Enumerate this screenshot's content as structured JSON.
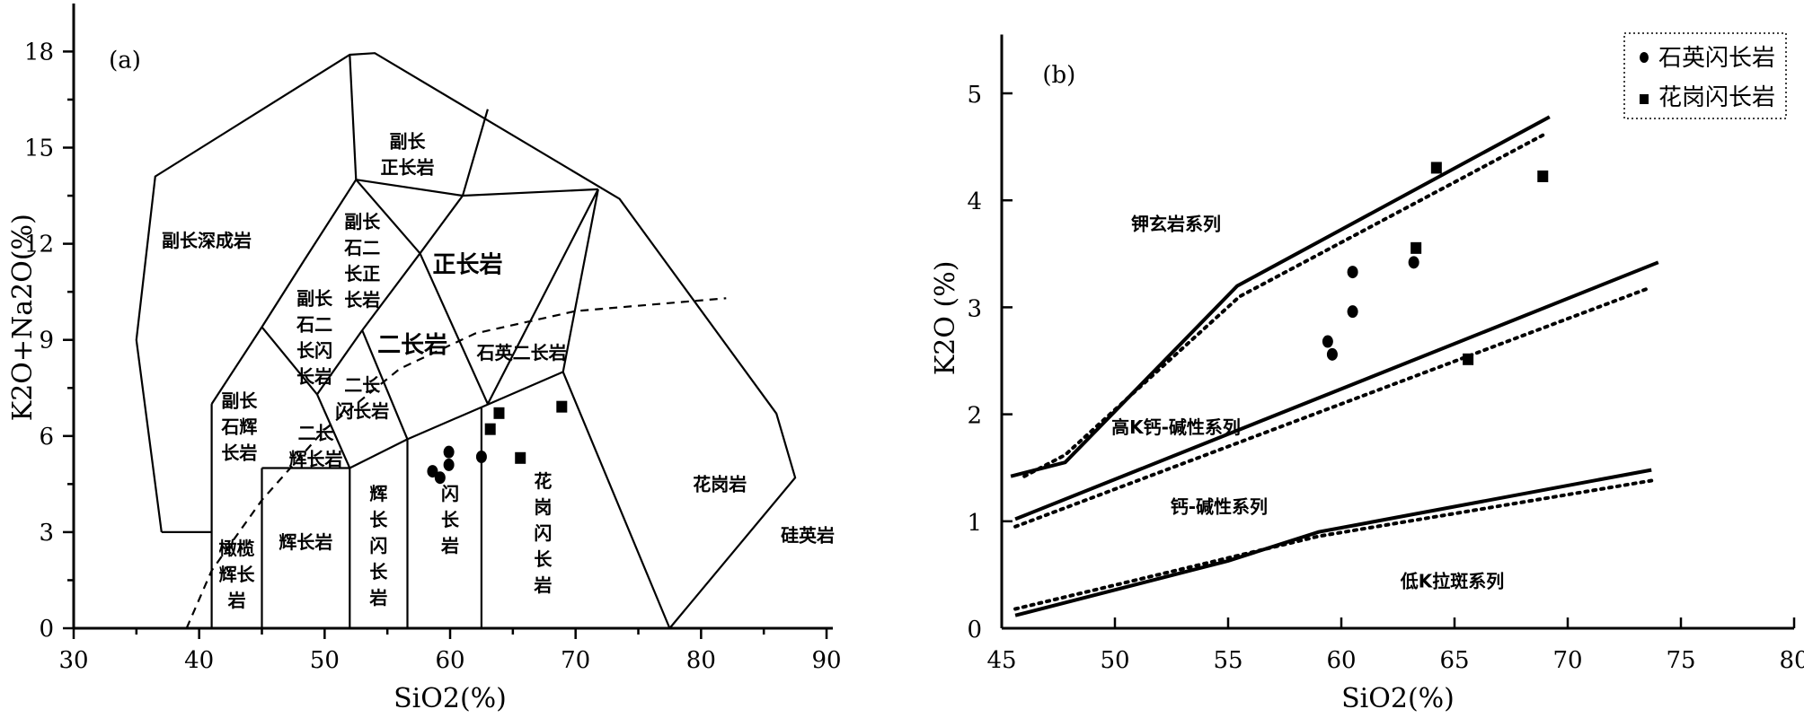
{
  "chart_data": [
    {
      "type": "scatter",
      "panel_label": "(a)",
      "xlabel": "SiO2(%)",
      "ylabel": "K2O+Na2O(%)",
      "xlim": [
        30,
        90
      ],
      "ylim": [
        0,
        19.5
      ],
      "xticks": [
        30,
        40,
        50,
        60,
        70,
        80,
        90
      ],
      "yticks": [
        0,
        3,
        6,
        9,
        12,
        15,
        18
      ],
      "field_labels": {
        "fu_chang_shen_cheng_yan": "副长深成岩",
        "fu_chang_zheng_chang_yan": "副长\n正长岩",
        "fu_chang_shi_er_chang_zheng_chang_yan": "副长\n石二\n长正\n长岩",
        "zheng_chang_yan": "正长岩",
        "fu_chang_shi_er_chang_shan_chang_yan": "副长\n石二\n长闪\n长岩",
        "er_chang_yan": "二长岩",
        "shi_ying_er_chang_yan": "石英二长岩",
        "fu_chang_shi_hui_chang_yan": "副长\n石辉\n长岩",
        "er_chang_hui_chang_yan": "二长\n辉长岩",
        "er_chang_shan_chang_yan": "二长\n闪长岩",
        "gan_lan_hui_chang_yan": "橄榄\n辉长\n岩",
        "hui_chang_yan": "辉长岩",
        "hui_chang_shan_chang_yan": "辉\n长\n闪\n长\n岩",
        "shan_chang_yan": "闪\n长\n岩",
        "hua_gang_shan_chang_yan": "花\n岗\n闪\n长\n岩",
        "hua_gang_yan": "花岗岩",
        "gui_ying_yan": "硅英岩"
      },
      "series": [
        {
          "name": "石英闪长岩",
          "marker": "circle",
          "points": [
            [
              58.6,
              4.9
            ],
            [
              59.2,
              4.7
            ],
            [
              59.9,
              5.1
            ],
            [
              59.9,
              5.5
            ],
            [
              62.5,
              5.35
            ]
          ]
        },
        {
          "name": "花岗闪长岩",
          "marker": "square",
          "points": [
            [
              63.2,
              6.2
            ],
            [
              63.9,
              6.7
            ],
            [
              65.6,
              5.3
            ],
            [
              68.9,
              6.9
            ]
          ]
        }
      ]
    },
    {
      "type": "line",
      "panel_label": "(b)",
      "xlabel": "SiO2(%)",
      "ylabel": "K2O (%)",
      "xlim": [
        45,
        80
      ],
      "ylim": [
        0,
        5.55
      ],
      "xticks": [
        45,
        50,
        55,
        60,
        65,
        70,
        75,
        80
      ],
      "yticks": [
        0,
        1,
        2,
        3,
        4,
        5
      ],
      "series_fields": {
        "shoshonite": "钾玄岩系列",
        "high_k_calc_alkaline": "高K钙-碱性系列",
        "calc_alkaline": "钙-碱性系列",
        "low_k_tholeiite": "低K拉斑系列"
      },
      "legend": {
        "position": "top-right",
        "entries": [
          "石英闪长岩",
          "花岗闪长岩"
        ]
      },
      "series": [
        {
          "name": "石英闪长岩",
          "marker": "circle",
          "points": [
            [
              59.4,
              2.68
            ],
            [
              59.6,
              2.56
            ],
            [
              60.5,
              2.96
            ],
            [
              60.5,
              3.33
            ],
            [
              63.2,
              3.42
            ]
          ]
        },
        {
          "name": "花岗闪长岩",
          "marker": "square",
          "points": [
            [
              63.3,
              3.55
            ],
            [
              64.2,
              4.3
            ],
            [
              65.6,
              2.51
            ],
            [
              68.9,
              4.22
            ]
          ]
        }
      ]
    }
  ],
  "colors": {
    "ink": "#000000",
    "background": "#ffffff"
  }
}
